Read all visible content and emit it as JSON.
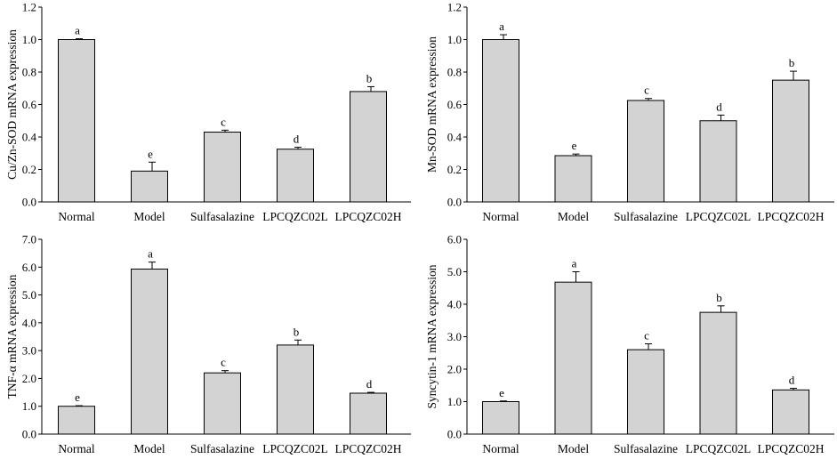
{
  "figure": {
    "background": "#ffffff",
    "bar_color": "#d3d3d3",
    "ink_color": "#000000"
  },
  "chart_data": [
    {
      "type": "bar",
      "position": "top-left",
      "ylabel": "Cu/Zn-SOD mRNA expression",
      "categories": [
        "Normal",
        "Model",
        "Sulfasalazine",
        "LPCQZC02L",
        "LPCQZC02H"
      ],
      "values": [
        1.0,
        0.19,
        0.43,
        0.325,
        0.68
      ],
      "errors": [
        0.005,
        0.055,
        0.012,
        0.012,
        0.03
      ],
      "significance": [
        "a",
        "e",
        "c",
        "d",
        "b"
      ],
      "ylim": [
        0,
        1.2
      ],
      "ticks": [
        "0.0",
        "0.2",
        "0.4",
        "0.6",
        "0.8",
        "1.0",
        "1.2"
      ]
    },
    {
      "type": "bar",
      "position": "top-right",
      "ylabel": "Mn-SOD mRNA expression",
      "categories": [
        "Normal",
        "Model",
        "Sulfasalazine",
        "LPCQZC02L",
        "LPCQZC02H"
      ],
      "values": [
        1.0,
        0.285,
        0.625,
        0.5,
        0.75
      ],
      "errors": [
        0.03,
        0.01,
        0.012,
        0.035,
        0.055
      ],
      "significance": [
        "a",
        "e",
        "c",
        "d",
        "b"
      ],
      "ylim": [
        0,
        1.2
      ],
      "ticks": [
        "0.0",
        "0.2",
        "0.4",
        "0.6",
        "0.8",
        "1.0",
        "1.2"
      ]
    },
    {
      "type": "bar",
      "position": "bottom-left",
      "ylabel": "TNF-α mRNA expression",
      "categories": [
        "Normal",
        "Model",
        "Sulfasalazine",
        "LPCQZC02L",
        "LPCQZC02H"
      ],
      "values": [
        1.0,
        5.93,
        2.2,
        3.2,
        1.47
      ],
      "errors": [
        0.02,
        0.25,
        0.08,
        0.18,
        0.03
      ],
      "significance": [
        "e",
        "a",
        "c",
        "b",
        "d"
      ],
      "ylim": [
        0,
        7.0
      ],
      "ticks": [
        "0.0",
        "1.0",
        "2.0",
        "3.0",
        "4.0",
        "5.0",
        "6.0",
        "7.0"
      ]
    },
    {
      "type": "bar",
      "position": "bottom-right",
      "ylabel": "Syncytin-1 mRNA expression",
      "categories": [
        "Normal",
        "Model",
        "Sulfasalazine",
        "LPCQZC02L",
        "LPCQZC02H"
      ],
      "values": [
        1.0,
        4.68,
        2.6,
        3.75,
        1.36
      ],
      "errors": [
        0.02,
        0.32,
        0.18,
        0.2,
        0.05
      ],
      "significance": [
        "e",
        "a",
        "c",
        "b",
        "d"
      ],
      "ylim": [
        0,
        6.0
      ],
      "ticks": [
        "0.0",
        "1.0",
        "2.0",
        "3.0",
        "4.0",
        "5.0",
        "6.0"
      ]
    }
  ]
}
